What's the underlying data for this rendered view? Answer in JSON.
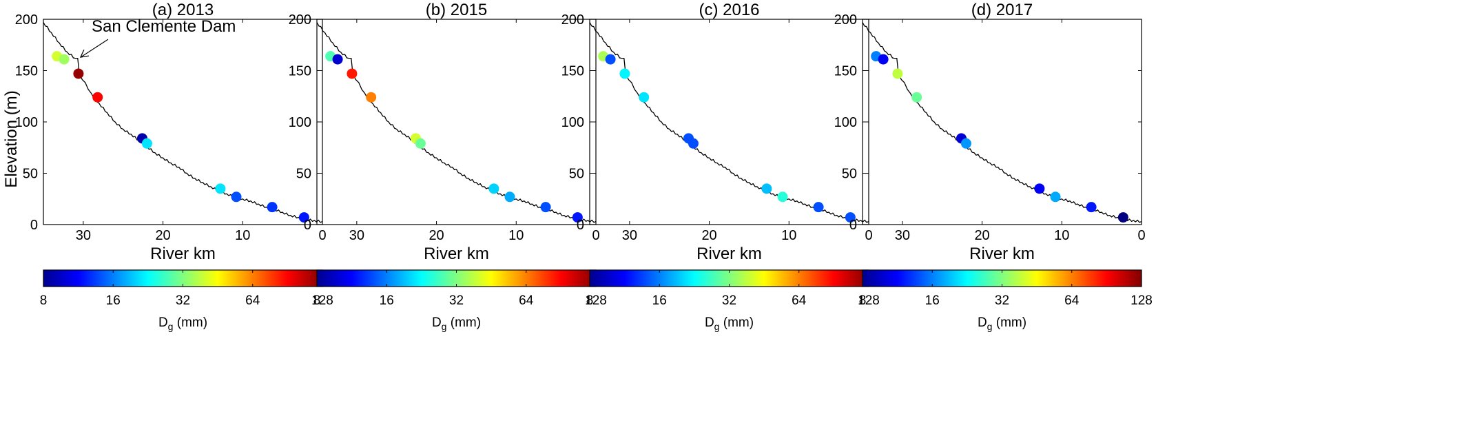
{
  "figure": {
    "ylabel": "Elevation (m)",
    "annotation": "San Clemente Dam",
    "colorbar": {
      "label_main": "D",
      "label_sub": "g",
      "label_unit": " (mm)",
      "ticks": [
        "8",
        "16",
        "32",
        "64",
        "128"
      ],
      "colormap": "jet",
      "scale": "log2",
      "range": [
        8,
        128
      ]
    }
  },
  "chart_data": [
    {
      "type": "scatter",
      "title": "(a) 2013",
      "xlabel": "River km",
      "ylabel": "Elevation (m)",
      "xlim": [
        35,
        0
      ],
      "ylim": [
        0,
        200
      ],
      "xticks": [
        "30",
        "20",
        "10",
        "0"
      ],
      "yticks": [
        "0",
        "50",
        "100",
        "150",
        "200"
      ],
      "x_reversed": true,
      "profile": {
        "x": [
          35,
          34,
          33,
          32,
          31,
          30.7,
          30.5,
          29,
          28,
          27,
          26,
          25,
          24,
          23,
          22,
          21,
          20,
          19,
          18,
          17,
          16,
          15,
          14,
          13,
          12,
          11,
          10,
          9,
          8,
          7,
          6,
          5,
          4,
          3,
          2,
          1,
          0
        ],
        "y": [
          197,
          187,
          177,
          168,
          162,
          162,
          147,
          128,
          118,
          109,
          100,
          93,
          88,
          82,
          76,
          70,
          65,
          60,
          56,
          50,
          45,
          41,
          37,
          33,
          30,
          27,
          25,
          23,
          20,
          17,
          15,
          12,
          9,
          7,
          5,
          4,
          3
        ]
      },
      "points": {
        "x": [
          33.3,
          32.4,
          30.6,
          28.2,
          22.6,
          22.0,
          12.8,
          10.8,
          6.3,
          2.3
        ],
        "y": [
          164,
          161,
          147,
          124,
          84,
          79,
          35,
          27,
          17,
          7
        ],
        "dg_mm": [
          40,
          35,
          120,
          90,
          9,
          21,
          21,
          14,
          13,
          12
        ]
      }
    },
    {
      "type": "scatter",
      "title": "(b) 2015",
      "xlabel": "River km",
      "ylabel": "",
      "xlim": [
        35,
        0
      ],
      "ylim": [
        0,
        200
      ],
      "xticks": [
        "30",
        "20",
        "10",
        "0"
      ],
      "yticks": [
        "0",
        "50",
        "100",
        "150",
        "200"
      ],
      "x_reversed": true,
      "profile": {
        "x": [
          35,
          34,
          33,
          32,
          31,
          30.7,
          30.5,
          29,
          28,
          27,
          26,
          25,
          24,
          23,
          22,
          21,
          20,
          19,
          18,
          17,
          16,
          15,
          14,
          13,
          12,
          11,
          10,
          9,
          8,
          7,
          6,
          5,
          4,
          3,
          2,
          1,
          0
        ],
        "y": [
          197,
          187,
          177,
          168,
          162,
          162,
          147,
          128,
          118,
          109,
          100,
          93,
          88,
          82,
          76,
          70,
          65,
          60,
          56,
          50,
          45,
          41,
          37,
          33,
          30,
          27,
          25,
          23,
          20,
          17,
          15,
          12,
          9,
          7,
          5,
          4,
          3
        ]
      },
      "points": {
        "x": [
          33.3,
          32.4,
          30.6,
          28.2,
          22.6,
          22.0,
          12.8,
          10.8,
          6.3,
          2.3
        ],
        "y": [
          164,
          161,
          147,
          124,
          84,
          79,
          35,
          27,
          17,
          7
        ],
        "dg_mm": [
          28,
          10,
          85,
          64,
          40,
          30,
          20,
          18,
          14,
          12
        ]
      }
    },
    {
      "type": "scatter",
      "title": "(c) 2016",
      "xlabel": "River km",
      "ylabel": "",
      "xlim": [
        35,
        0
      ],
      "ylim": [
        0,
        200
      ],
      "xticks": [
        "30",
        "20",
        "10",
        "0"
      ],
      "yticks": [
        "0",
        "50",
        "100",
        "150",
        "200"
      ],
      "x_reversed": true,
      "profile": {
        "x": [
          35,
          34,
          33,
          32,
          31,
          30.7,
          30.5,
          29,
          28,
          27,
          26,
          25,
          24,
          23,
          22,
          21,
          20,
          19,
          18,
          17,
          16,
          15,
          14,
          13,
          12,
          11,
          10,
          9,
          8,
          7,
          6,
          5,
          4,
          3,
          2,
          1,
          0
        ],
        "y": [
          197,
          187,
          177,
          168,
          162,
          162,
          147,
          128,
          118,
          109,
          100,
          93,
          88,
          82,
          76,
          70,
          65,
          60,
          56,
          50,
          45,
          41,
          37,
          33,
          30,
          27,
          25,
          23,
          20,
          17,
          15,
          12,
          9,
          7,
          5,
          4,
          3
        ]
      },
      "points": {
        "x": [
          33.3,
          32.4,
          30.6,
          28.2,
          22.6,
          22.0,
          12.8,
          10.8,
          6.3,
          2.3
        ],
        "y": [
          164,
          161,
          147,
          124,
          84,
          79,
          35,
          27,
          17,
          7
        ],
        "dg_mm": [
          36,
          14,
          22,
          21,
          14,
          14,
          19,
          25,
          14,
          14
        ]
      }
    },
    {
      "type": "scatter",
      "title": "(d) 2017",
      "xlabel": "River km",
      "ylabel": "",
      "xlim": [
        35,
        0
      ],
      "ylim": [
        0,
        200
      ],
      "xticks": [
        "30",
        "20",
        "10",
        "0"
      ],
      "yticks": [
        "0",
        "50",
        "100",
        "150",
        "200"
      ],
      "x_reversed": true,
      "profile": {
        "x": [
          35,
          34,
          33,
          32,
          31,
          30.7,
          30.5,
          29,
          28,
          27,
          26,
          25,
          24,
          23,
          22,
          21,
          20,
          19,
          18,
          17,
          16,
          15,
          14,
          13,
          12,
          11,
          10,
          9,
          8,
          7,
          6,
          5,
          4,
          3,
          2,
          1,
          0
        ],
        "y": [
          197,
          187,
          177,
          168,
          162,
          162,
          147,
          128,
          118,
          109,
          100,
          93,
          88,
          82,
          76,
          70,
          65,
          60,
          56,
          50,
          45,
          41,
          37,
          33,
          30,
          27,
          25,
          23,
          20,
          17,
          15,
          12,
          9,
          7,
          5,
          4,
          3
        ]
      },
      "points": {
        "x": [
          33.3,
          32.4,
          30.6,
          28.2,
          22.6,
          22.0,
          12.8,
          10.8,
          6.3,
          2.3
        ],
        "y": [
          164,
          161,
          147,
          124,
          84,
          79,
          35,
          27,
          17,
          7
        ],
        "dg_mm": [
          16,
          11,
          38,
          30,
          10,
          17,
          11,
          18,
          12,
          8
        ]
      }
    }
  ]
}
